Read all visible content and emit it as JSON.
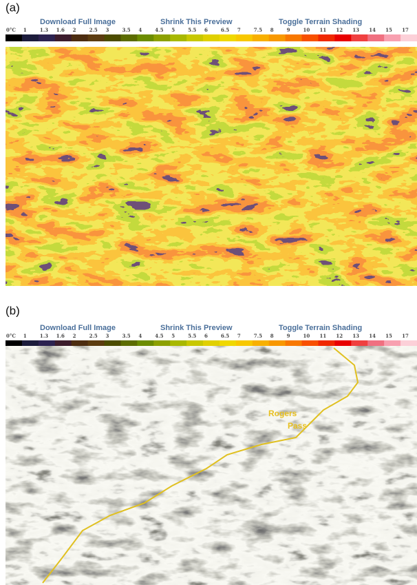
{
  "panels": [
    {
      "label": "(a)",
      "links": [
        "Download Full Image",
        "Shrink This Preview",
        "Toggle Terrain Shading"
      ],
      "legend": [
        {
          "label": "0°C",
          "color": "#000000"
        },
        {
          "label": "1",
          "color": "#1c1c3c"
        },
        {
          "label": "1.3",
          "color": "#2c2250"
        },
        {
          "label": "1.6",
          "color": "#3c1c2c"
        },
        {
          "label": "2",
          "color": "#4c2c10"
        },
        {
          "label": "2.5",
          "color": "#5c3c10"
        },
        {
          "label": "3",
          "color": "#4c4c00"
        },
        {
          "label": "3.5",
          "color": "#5c6c00"
        },
        {
          "label": "4",
          "color": "#6c8c00"
        },
        {
          "label": "4.5",
          "color": "#8ca000"
        },
        {
          "label": "5",
          "color": "#a8b800"
        },
        {
          "label": "5.5",
          "color": "#c8c800"
        },
        {
          "label": "6",
          "color": "#e0d000"
        },
        {
          "label": "6.5",
          "color": "#f0d800"
        },
        {
          "label": "7",
          "color": "#f8c800"
        },
        {
          "label": "7.5",
          "color": "#f8b000"
        },
        {
          "label": "8",
          "color": "#f89800"
        },
        {
          "label": "9",
          "color": "#f87800"
        },
        {
          "label": "10",
          "color": "#f85000"
        },
        {
          "label": "11",
          "color": "#f02800"
        },
        {
          "label": "12",
          "color": "#e80000"
        },
        {
          "label": "13",
          "color": "#f04040"
        },
        {
          "label": "14",
          "color": "#f07080"
        },
        {
          "label": "15",
          "color": "#f8a0b0"
        },
        {
          "label": "17",
          "color": "#fcd0d8"
        }
      ]
    },
    {
      "label": "(b)",
      "links": [
        "Download Full Image",
        "Shrink This Preview",
        "Toggle Terrain Shading"
      ],
      "legend": [
        {
          "label": "0°C",
          "color": "#000000"
        },
        {
          "label": "1",
          "color": "#1c1c3c"
        },
        {
          "label": "1.3",
          "color": "#2c2250"
        },
        {
          "label": "1.6",
          "color": "#3c1c2c"
        },
        {
          "label": "2",
          "color": "#4c2c10"
        },
        {
          "label": "2.5",
          "color": "#5c3c10"
        },
        {
          "label": "3",
          "color": "#4c4c00"
        },
        {
          "label": "3.5",
          "color": "#5c6c00"
        },
        {
          "label": "4",
          "color": "#6c8c00"
        },
        {
          "label": "4.5",
          "color": "#8ca000"
        },
        {
          "label": "5",
          "color": "#a8b800"
        },
        {
          "label": "5.5",
          "color": "#c8c800"
        },
        {
          "label": "6",
          "color": "#e0d000"
        },
        {
          "label": "6.5",
          "color": "#f0d800"
        },
        {
          "label": "7",
          "color": "#f8c800"
        },
        {
          "label": "7.5",
          "color": "#f8b000"
        },
        {
          "label": "8",
          "color": "#f89800"
        },
        {
          "label": "9",
          "color": "#f87800"
        },
        {
          "label": "10",
          "color": "#f85000"
        },
        {
          "label": "11",
          "color": "#f02800"
        },
        {
          "label": "12",
          "color": "#e80000"
        },
        {
          "label": "13",
          "color": "#f04040"
        },
        {
          "label": "14",
          "color": "#f07080"
        },
        {
          "label": "15",
          "color": "#f8a0b0"
        },
        {
          "label": "17",
          "color": "#fcd0d8"
        }
      ],
      "map_labels": [
        "Rogers",
        "Pass"
      ]
    }
  ]
}
